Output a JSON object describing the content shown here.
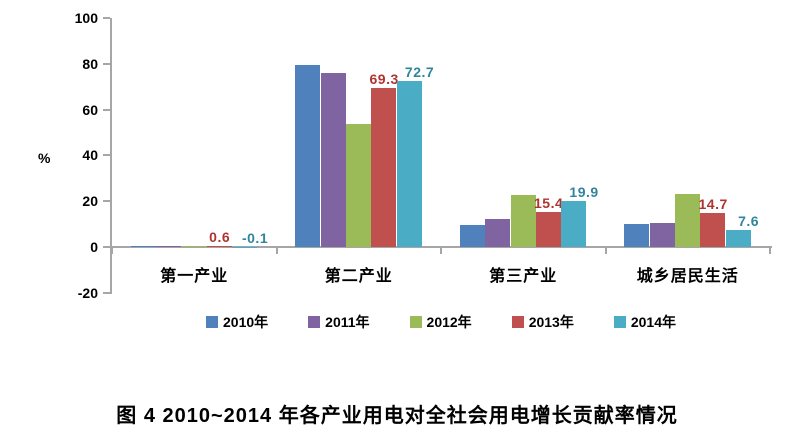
{
  "figure": {
    "caption": "图 4  2010~2014 年各产业用电对全社会用电增长贡献率情况"
  },
  "chart_data": {
    "type": "bar",
    "title": "",
    "xlabel": "",
    "ylabel": "%",
    "ylim": [
      -20,
      100
    ],
    "ytick_interval": 20,
    "yticks": [
      100,
      80,
      60,
      40,
      20,
      0,
      -20
    ],
    "grid": false,
    "legend_position": "bottom",
    "axis_color": "#a6a6a6",
    "categories": [
      "第一产业",
      "第二产业",
      "第三产业",
      "城乡居民生活"
    ],
    "series": [
      {
        "name": "2010年",
        "color": "#4F81BD",
        "labels_shown": false,
        "values": [
          0.5,
          79.5,
          9.6,
          10.0
        ]
      },
      {
        "name": "2011年",
        "color": "#8064A2",
        "labels_shown": false,
        "values": [
          0.4,
          76.0,
          12.3,
          10.3
        ]
      },
      {
        "name": "2012年",
        "color": "#9BBB59",
        "labels_shown": false,
        "values": [
          0.3,
          53.5,
          22.5,
          23.0
        ]
      },
      {
        "name": "2013年",
        "color": "#C0504D",
        "labels_shown": true,
        "label_color": "#AE342F",
        "values": [
          0.6,
          69.3,
          15.4,
          14.7
        ]
      },
      {
        "name": "2014年",
        "color": "#4BACC6",
        "labels_shown": true,
        "label_color": "#31859B",
        "values": [
          -0.1,
          72.7,
          19.9,
          7.6
        ]
      }
    ]
  }
}
